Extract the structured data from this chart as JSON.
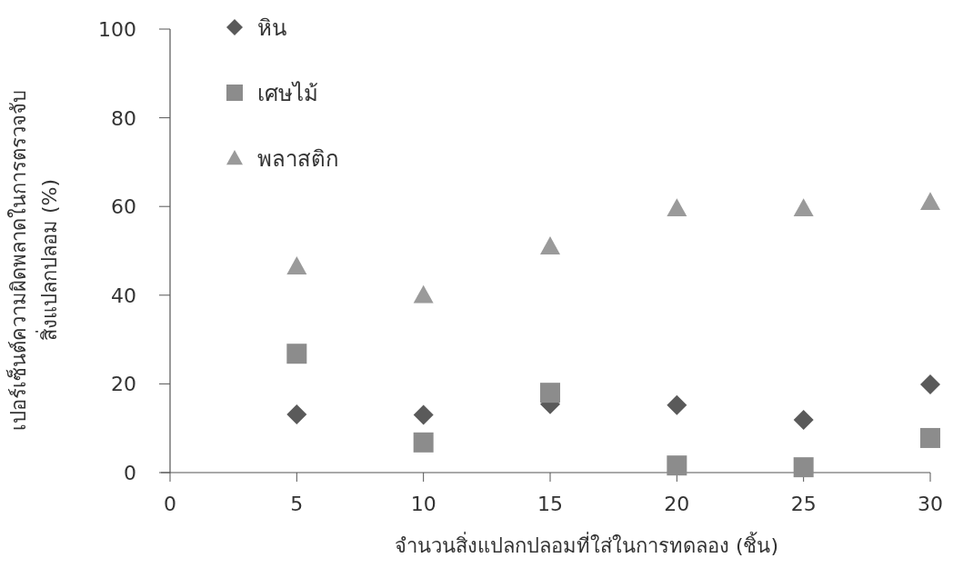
{
  "chart_data": {
    "type": "scatter",
    "xlabel": "จำนวนสิ่งแปลกปลอมที่ใส่ในการทดลอง (ชิ้น)",
    "ylabel": "เปอร์เซ็นต์ความผิดพลาดในการตรวจจับ\nสิ่งแปลกปลอม (%)",
    "x": [
      5,
      10,
      15,
      20,
      25,
      30
    ],
    "series": [
      {
        "name": "หิน",
        "color": "#5a5a5a",
        "marker": "diamond",
        "values": [
          13.1,
          13,
          15.4,
          15.2,
          11.9,
          19.9
        ]
      },
      {
        "name": "เศษไม้",
        "color": "#8c8c8c",
        "marker": "square",
        "values": [
          26.8,
          6.8,
          18,
          1.6,
          1.2,
          7.8
        ]
      },
      {
        "name": "พลาสติก",
        "color": "#9a9a9a",
        "marker": "triangle",
        "values": [
          46.5,
          40,
          51,
          59.6,
          59.6,
          61
        ]
      }
    ],
    "xlim": [
      0,
      30
    ],
    "xticks": [
      0,
      5,
      10,
      15,
      20,
      25,
      30
    ],
    "ylim": [
      0,
      100
    ],
    "yticks": [
      0,
      20,
      40,
      60,
      80,
      100
    ],
    "grid": false,
    "legend": "top left"
  }
}
